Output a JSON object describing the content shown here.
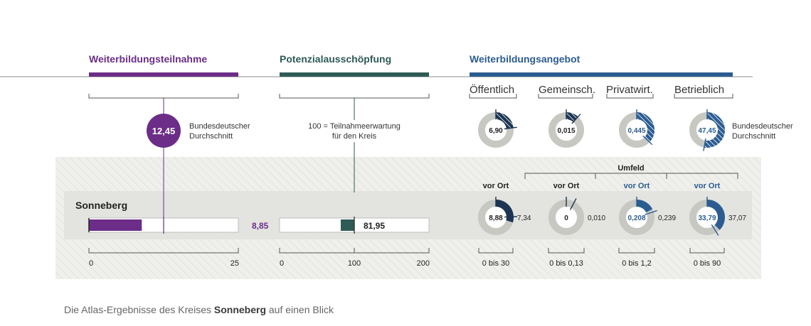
{
  "colors": {
    "purple": "#6b2d87",
    "green": "#2e5b55",
    "blue": "#2b5c91",
    "navy": "#1b3552",
    "track": "#c8c8c3",
    "band": "#eeeeeb",
    "text": "#3a3a3a"
  },
  "sections": {
    "participation": "Weiterbildungsteilnahme",
    "potential": "Potenzialausschöpfung",
    "offer": "Weiterbildungsangebot"
  },
  "offer_columns": [
    "Öffentlich",
    "Gemeinsch.",
    "Privatwirt.",
    "Betrieblich"
  ],
  "national_label": [
    "Bundesdeutscher",
    "Durchschnitt"
  ],
  "national_label_right": [
    "Bundesdeutscher",
    "Durchschnitt"
  ],
  "expectation_note": [
    "100 = Teilnahmeerwartung",
    "für den Kreis"
  ],
  "umfeld_label": "Umfeld",
  "vor_ort_label": "vor Ort",
  "district": "Sonneberg",
  "caption": {
    "prefix": "Die Atlas-Ergebnisse des Kreises ",
    "name": "Sonneberg",
    "suffix": " auf einen Blick"
  },
  "chart_data": [
    {
      "type": "bar",
      "title": "Weiterbildungsteilnahme",
      "categories": [
        "Sonneberg"
      ],
      "values": [
        8.85
      ],
      "value_label": "8,85",
      "reference": 12.45,
      "reference_label": "12,45",
      "xlim": [
        0,
        25
      ],
      "ticks": [
        "0",
        "25"
      ]
    },
    {
      "type": "bar",
      "title": "Potenzialausschöpfung",
      "categories": [
        "Sonneberg"
      ],
      "values": [
        81.95
      ],
      "value_label": "81,95",
      "reference": 100,
      "xlim": [
        0,
        200
      ],
      "ticks": [
        "0",
        "100",
        "200"
      ]
    },
    {
      "type": "pie",
      "title": "Weiterbildungsangebot",
      "categories": [
        "Öffentlich",
        "Gemeinsch.",
        "Privatwirt.",
        "Betrieblich"
      ],
      "ranges": [
        [
          0,
          30
        ],
        [
          0,
          0.13
        ],
        [
          0,
          1.2
        ],
        [
          0,
          90
        ]
      ],
      "range_labels": [
        "0 bis 30",
        "0 bis 0,13",
        "0 bis 1,2",
        "0 bis 90"
      ],
      "national": [
        6.9,
        0.015,
        0.445,
        47.45
      ],
      "national_labels": [
        "6,90",
        "0,015",
        "0,445",
        "47,45"
      ],
      "local": [
        8.88,
        0,
        0.208,
        33.79
      ],
      "local_labels": [
        "8,88",
        "0",
        "0,208",
        "33,79"
      ],
      "surroundings": [
        7.34,
        0.01,
        0.239,
        37.07
      ],
      "surroundings_labels": [
        "7,34",
        "0,010",
        "0,239",
        "37,07"
      ]
    }
  ]
}
